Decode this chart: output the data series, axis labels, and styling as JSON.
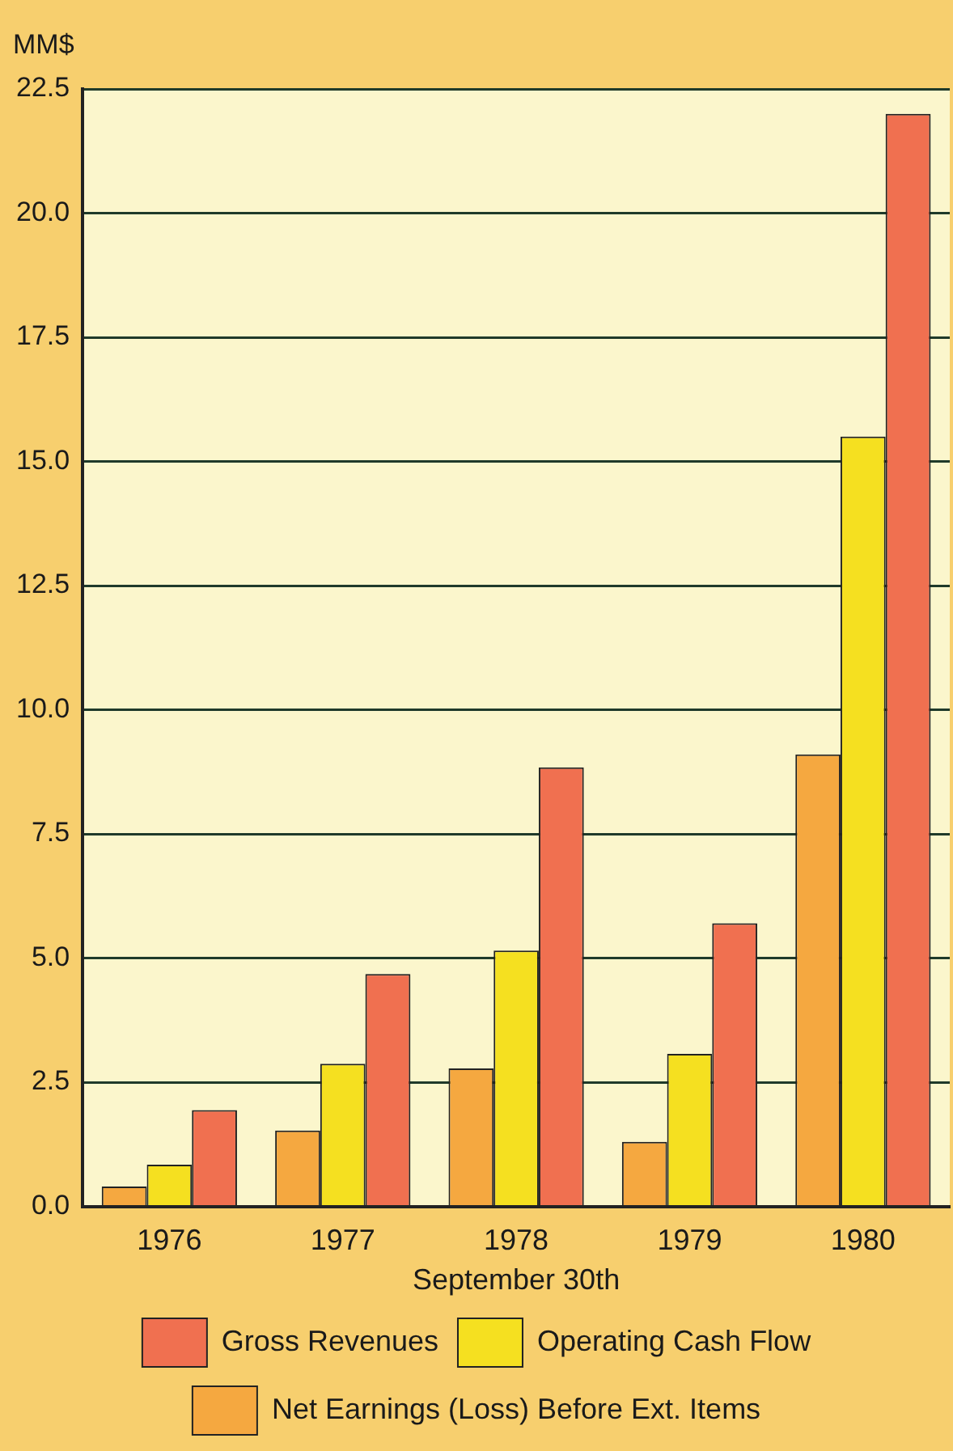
{
  "chart_data": {
    "type": "bar",
    "ylabel": "MM$",
    "xlabel": "September 30th",
    "categories": [
      "1976",
      "1977",
      "1978",
      "1979",
      "1980"
    ],
    "series": [
      {
        "name": "Net Earnings (Loss) Before Ext. Items",
        "color": "#f5a840",
        "values": [
          0.4,
          1.53,
          2.78,
          1.3,
          9.1
        ]
      },
      {
        "name": "Operating Cash Flow",
        "color": "#f5e020",
        "values": [
          0.84,
          2.87,
          5.15,
          3.07,
          15.5
        ]
      },
      {
        "name": "Gross Revenues",
        "color": "#f07050",
        "values": [
          1.94,
          4.68,
          8.84,
          5.7,
          22.0
        ]
      }
    ],
    "ylim": [
      0,
      22.5
    ],
    "yticks": [
      {
        "value": 0,
        "label": "0.0"
      },
      2.5,
      {
        "value": 5,
        "label": "5.0"
      },
      7.5,
      {
        "value": 10,
        "label": "10.0"
      },
      12.5,
      {
        "value": 15,
        "label": "15.0"
      },
      17.5,
      {
        "value": 20,
        "label": "20.0"
      },
      22.5
    ],
    "grid": "y",
    "legend": "bottom"
  }
}
